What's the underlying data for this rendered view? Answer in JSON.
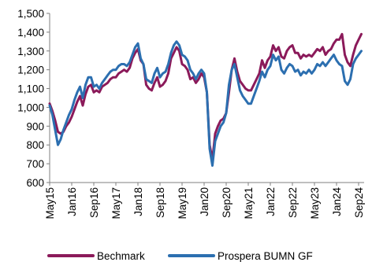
{
  "chart_data": {
    "type": "line",
    "title": "",
    "xlabel": "",
    "ylabel": "",
    "ylim": [
      600,
      1500
    ],
    "yticks": [
      600,
      700,
      800,
      900,
      1000,
      1100,
      1200,
      1300,
      1400,
      1500
    ],
    "ytick_labels": [
      "600",
      "700",
      "800",
      "900",
      "1,000",
      "1,100",
      "1,200",
      "1,300",
      "1,400",
      "1,500"
    ],
    "xlim": [
      "2015-05",
      "2024-11"
    ],
    "xticks": [
      "2015-05",
      "2016-01",
      "2016-09",
      "2017-05",
      "2018-01",
      "2018-09",
      "2019-05",
      "2020-01",
      "2020-09",
      "2021-05",
      "2022-01",
      "2022-09",
      "2023-05",
      "2024-01",
      "2024-09"
    ],
    "xtick_labels": [
      "May15",
      "Jan16",
      "Sep16",
      "May17",
      "Jan18",
      "Sep18",
      "May19",
      "Jan20",
      "Sep20",
      "May21",
      "Jan22",
      "Sep22",
      "May23",
      "Jan24",
      "Sep24"
    ],
    "grid": false,
    "legend_position": "bottom",
    "series": [
      {
        "name": "Bechmark",
        "color": "#8b1a5a",
        "x": [
          "2015-05",
          "2015-06",
          "2015-07",
          "2015-08",
          "2015-09",
          "2015-10",
          "2015-11",
          "2015-12",
          "2016-01",
          "2016-02",
          "2016-03",
          "2016-04",
          "2016-05",
          "2016-06",
          "2016-07",
          "2016-08",
          "2016-09",
          "2016-10",
          "2016-11",
          "2016-12",
          "2017-01",
          "2017-02",
          "2017-03",
          "2017-04",
          "2017-05",
          "2017-06",
          "2017-07",
          "2017-08",
          "2017-09",
          "2017-10",
          "2017-11",
          "2017-12",
          "2018-01",
          "2018-02",
          "2018-03",
          "2018-04",
          "2018-05",
          "2018-06",
          "2018-07",
          "2018-08",
          "2018-09",
          "2018-10",
          "2018-11",
          "2018-12",
          "2019-01",
          "2019-02",
          "2019-03",
          "2019-04",
          "2019-05",
          "2019-06",
          "2019-07",
          "2019-08",
          "2019-09",
          "2019-10",
          "2019-11",
          "2019-12",
          "2020-01",
          "2020-02",
          "2020-03",
          "2020-04",
          "2020-05",
          "2020-06",
          "2020-07",
          "2020-08",
          "2020-09",
          "2020-10",
          "2020-11",
          "2020-12",
          "2021-01",
          "2021-02",
          "2021-03",
          "2021-04",
          "2021-05",
          "2021-06",
          "2021-07",
          "2021-08",
          "2021-09",
          "2021-10",
          "2021-11",
          "2021-12",
          "2022-01",
          "2022-02",
          "2022-03",
          "2022-04",
          "2022-05",
          "2022-06",
          "2022-07",
          "2022-08",
          "2022-09",
          "2022-10",
          "2022-11",
          "2022-12",
          "2023-01",
          "2023-02",
          "2023-03",
          "2023-04",
          "2023-05",
          "2023-06",
          "2023-07",
          "2023-08",
          "2023-09",
          "2023-10",
          "2023-11",
          "2023-12",
          "2024-01",
          "2024-02",
          "2024-03",
          "2024-04",
          "2024-05",
          "2024-06",
          "2024-07",
          "2024-08",
          "2024-09",
          "2024-10"
        ],
        "values": [
          1020,
          980,
          930,
          870,
          860,
          870,
          900,
          920,
          950,
          990,
          1030,
          1060,
          1010,
          1070,
          1110,
          1120,
          1080,
          1090,
          1080,
          1110,
          1120,
          1130,
          1150,
          1160,
          1160,
          1180,
          1190,
          1200,
          1190,
          1210,
          1260,
          1290,
          1310,
          1250,
          1230,
          1120,
          1100,
          1090,
          1130,
          1160,
          1110,
          1120,
          1140,
          1180,
          1260,
          1290,
          1320,
          1300,
          1230,
          1220,
          1200,
          1150,
          1160,
          1130,
          1150,
          1180,
          1160,
          1080,
          800,
          720,
          860,
          900,
          930,
          940,
          970,
          1080,
          1200,
          1260,
          1190,
          1140,
          1120,
          1100,
          1090,
          1090,
          1120,
          1150,
          1180,
          1250,
          1210,
          1250,
          1270,
          1330,
          1300,
          1320,
          1270,
          1260,
          1300,
          1320,
          1330,
          1290,
          1290,
          1260,
          1280,
          1270,
          1280,
          1270,
          1290,
          1310,
          1300,
          1320,
          1280,
          1300,
          1310,
          1340,
          1360,
          1360,
          1390,
          1280,
          1240,
          1220,
          1280,
          1330,
          1360,
          1390
        ]
      },
      {
        "name": "Prospera BUMN GF",
        "color": "#2c6fb0",
        "x": [
          "2015-05",
          "2015-06",
          "2015-07",
          "2015-08",
          "2015-09",
          "2015-10",
          "2015-11",
          "2015-12",
          "2016-01",
          "2016-02",
          "2016-03",
          "2016-04",
          "2016-05",
          "2016-06",
          "2016-07",
          "2016-08",
          "2016-09",
          "2016-10",
          "2016-11",
          "2016-12",
          "2017-01",
          "2017-02",
          "2017-03",
          "2017-04",
          "2017-05",
          "2017-06",
          "2017-07",
          "2017-08",
          "2017-09",
          "2017-10",
          "2017-11",
          "2017-12",
          "2018-01",
          "2018-02",
          "2018-03",
          "2018-04",
          "2018-05",
          "2018-06",
          "2018-07",
          "2018-08",
          "2018-09",
          "2018-10",
          "2018-11",
          "2018-12",
          "2019-01",
          "2019-02",
          "2019-03",
          "2019-04",
          "2019-05",
          "2019-06",
          "2019-07",
          "2019-08",
          "2019-09",
          "2019-10",
          "2019-11",
          "2019-12",
          "2020-01",
          "2020-02",
          "2020-03",
          "2020-04",
          "2020-05",
          "2020-06",
          "2020-07",
          "2020-08",
          "2020-09",
          "2020-10",
          "2020-11",
          "2020-12",
          "2021-01",
          "2021-02",
          "2021-03",
          "2021-04",
          "2021-05",
          "2021-06",
          "2021-07",
          "2021-08",
          "2021-09",
          "2021-10",
          "2021-11",
          "2021-12",
          "2022-01",
          "2022-02",
          "2022-03",
          "2022-04",
          "2022-05",
          "2022-06",
          "2022-07",
          "2022-08",
          "2022-09",
          "2022-10",
          "2022-11",
          "2022-12",
          "2023-01",
          "2023-02",
          "2023-03",
          "2023-04",
          "2023-05",
          "2023-06",
          "2023-07",
          "2023-08",
          "2023-09",
          "2023-10",
          "2023-11",
          "2023-12",
          "2024-01",
          "2024-02",
          "2024-03",
          "2024-04",
          "2024-05",
          "2024-06",
          "2024-07",
          "2024-08",
          "2024-09",
          "2024-10"
        ],
        "values": [
          1010,
          960,
          880,
          800,
          830,
          880,
          920,
          960,
          990,
          1040,
          1080,
          1110,
          1050,
          1120,
          1160,
          1160,
          1110,
          1120,
          1100,
          1130,
          1150,
          1170,
          1190,
          1200,
          1200,
          1220,
          1230,
          1230,
          1220,
          1240,
          1280,
          1320,
          1340,
          1260,
          1230,
          1150,
          1140,
          1130,
          1180,
          1210,
          1160,
          1180,
          1190,
          1230,
          1290,
          1330,
          1350,
          1330,
          1280,
          1270,
          1250,
          1200,
          1180,
          1150,
          1180,
          1200,
          1180,
          1080,
          780,
          690,
          820,
          860,
          900,
          920,
          970,
          1120,
          1200,
          1230,
          1160,
          1090,
          1060,
          1040,
          1020,
          1020,
          1060,
          1100,
          1140,
          1190,
          1160,
          1200,
          1220,
          1280,
          1250,
          1270,
          1200,
          1180,
          1210,
          1230,
          1220,
          1190,
          1200,
          1170,
          1190,
          1180,
          1200,
          1180,
          1200,
          1230,
          1220,
          1240,
          1220,
          1240,
          1260,
          1280,
          1250,
          1230,
          1220,
          1140,
          1120,
          1150,
          1230,
          1260,
          1280,
          1300
        ]
      }
    ]
  }
}
